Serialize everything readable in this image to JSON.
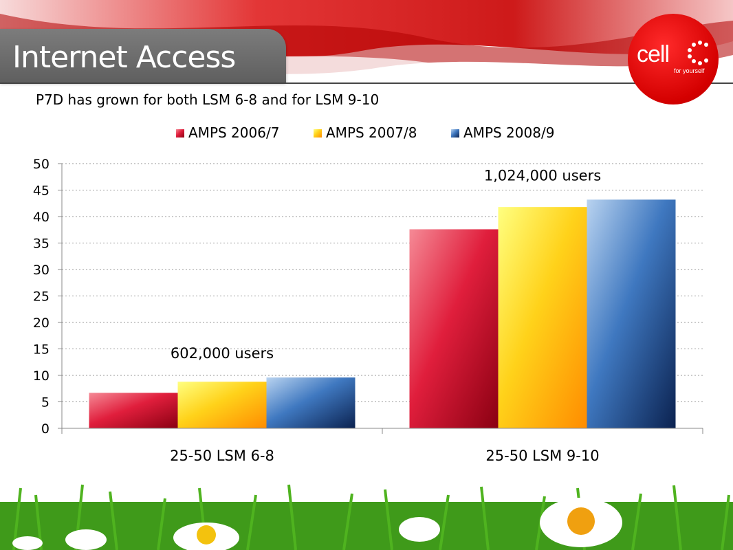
{
  "slide": {
    "title": "Internet Access",
    "subtitle": "P7D has grown for both LSM 6-8 and for LSM 9-10",
    "logo_text": "cell",
    "logo_tagline": "for yourself"
  },
  "colors": {
    "brand_red": "#d40000",
    "series_2006": "#c8102e",
    "series_2007": "#ffc000",
    "series_2008": "#1f4e8c"
  },
  "chart_data": {
    "type": "bar",
    "categories": [
      "25-50 LSM 6-8",
      "25-50 LSM 9-10"
    ],
    "series": [
      {
        "name": "AMPS 2006/7",
        "values": [
          6.7,
          37.6
        ],
        "color": "#c8102e"
      },
      {
        "name": "AMPS 2007/8",
        "values": [
          8.8,
          41.8
        ],
        "color": "#ffc000"
      },
      {
        "name": "AMPS 2008/9",
        "values": [
          9.6,
          43.2
        ],
        "color": "#1f4e8c"
      }
    ],
    "ylim": [
      0,
      50
    ],
    "yticks": [
      "0",
      "5",
      "10",
      "15",
      "20",
      "25",
      "30",
      "35",
      "40",
      "45",
      "50"
    ],
    "annotations": [
      "602,000 users",
      "1,024,000 users"
    ],
    "grid": true,
    "legend": "top"
  }
}
